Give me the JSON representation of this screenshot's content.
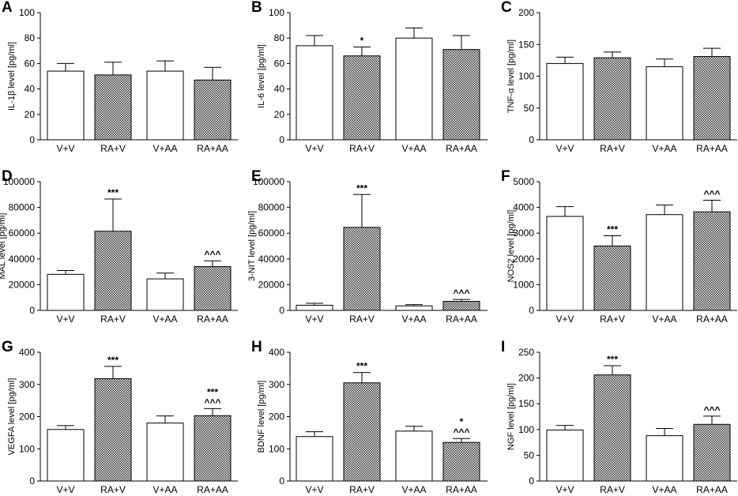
{
  "figure": {
    "colors": {
      "bar_open": "#ffffff",
      "bar_hatch": "#2b2b2b",
      "axis": "#000000"
    },
    "categories": [
      "V+V",
      "RA+V",
      "V+AA",
      "RA+AA"
    ]
  },
  "chart_data": [
    {
      "panel": "A",
      "type": "bar",
      "ylabel": "IL-1β level [pg/ml]",
      "ylim": [
        0,
        100
      ],
      "yticks": [
        "0",
        "20",
        "40",
        "60",
        "80",
        "100"
      ],
      "values": [
        54,
        51,
        54,
        47
      ],
      "errors": [
        6,
        10,
        8,
        10
      ],
      "annotations": [
        "",
        "",
        "",
        ""
      ]
    },
    {
      "panel": "B",
      "type": "bar",
      "ylabel": "IL-6 level [pg/ml]",
      "ylim": [
        0,
        100
      ],
      "yticks": [
        "0",
        "20",
        "40",
        "60",
        "80",
        "100"
      ],
      "values": [
        74,
        66,
        80,
        71
      ],
      "errors": [
        8,
        7,
        8,
        11
      ],
      "annotations": [
        "",
        "*",
        "",
        ""
      ]
    },
    {
      "panel": "C",
      "type": "bar",
      "ylabel": "TNF-α level [pg/ml]",
      "ylim": [
        0,
        200
      ],
      "yticks": [
        "0",
        "50",
        "100",
        "150",
        "200"
      ],
      "values": [
        120,
        129,
        115,
        131
      ],
      "errors": [
        10,
        9,
        12,
        13
      ],
      "annotations": [
        "",
        "",
        "",
        ""
      ]
    },
    {
      "panel": "D",
      "type": "bar",
      "ylabel": "MAL level [pg/ml]",
      "ylim": [
        0,
        100000
      ],
      "yticks": [
        "0",
        "20000",
        "40000",
        "60000",
        "80000",
        "100000"
      ],
      "values": [
        28000,
        61500,
        24500,
        34000
      ],
      "errors": [
        3000,
        25000,
        4500,
        4500
      ],
      "annotations": [
        "",
        "***",
        "",
        "^^^"
      ]
    },
    {
      "panel": "E",
      "type": "bar",
      "ylabel": "3-NIT level [pg/ml]",
      "ylim": [
        0,
        100000
      ],
      "yticks": [
        "0",
        "20000",
        "40000",
        "60000",
        "80000",
        "100000"
      ],
      "values": [
        4000,
        64500,
        3500,
        7000
      ],
      "errors": [
        1500,
        25500,
        1000,
        1500
      ],
      "annotations": [
        "",
        "***",
        "",
        "^^^"
      ]
    },
    {
      "panel": "F",
      "type": "bar",
      "ylabel": "NOS2 level [pg/ml]",
      "ylim": [
        0,
        5000
      ],
      "yticks": [
        "0",
        "1000",
        "2000",
        "3000",
        "4000",
        "5000"
      ],
      "values": [
        3650,
        2500,
        3720,
        3830
      ],
      "errors": [
        380,
        400,
        370,
        450
      ],
      "annotations": [
        "",
        "***",
        "",
        "^^^"
      ]
    },
    {
      "panel": "G",
      "type": "bar",
      "ylabel": "VEGFA level [pg/ml]",
      "ylim": [
        0,
        400
      ],
      "yticks": [
        "0",
        "100",
        "200",
        "300",
        "400"
      ],
      "values": [
        160,
        318,
        180,
        203
      ],
      "errors": [
        12,
        38,
        22,
        22
      ],
      "annotations": [
        "",
        "***",
        "",
        "***|^^^"
      ]
    },
    {
      "panel": "H",
      "type": "bar",
      "ylabel": "BDNF level [pg/ml]",
      "ylim": [
        0,
        400
      ],
      "yticks": [
        "0",
        "100",
        "200",
        "300",
        "400"
      ],
      "values": [
        138,
        305,
        155,
        120
      ],
      "errors": [
        15,
        32,
        15,
        12
      ],
      "annotations": [
        "",
        "***",
        "",
        "*|^^^"
      ]
    },
    {
      "panel": "I",
      "type": "bar",
      "ylabel": "NGF level [pg/ml]",
      "ylim": [
        0,
        250
      ],
      "yticks": [
        "0",
        "50",
        "100",
        "150",
        "200",
        "250"
      ],
      "values": [
        99,
        206,
        88,
        110
      ],
      "errors": [
        9,
        18,
        14,
        16
      ],
      "annotations": [
        "",
        "***",
        "",
        "^^^"
      ]
    }
  ]
}
